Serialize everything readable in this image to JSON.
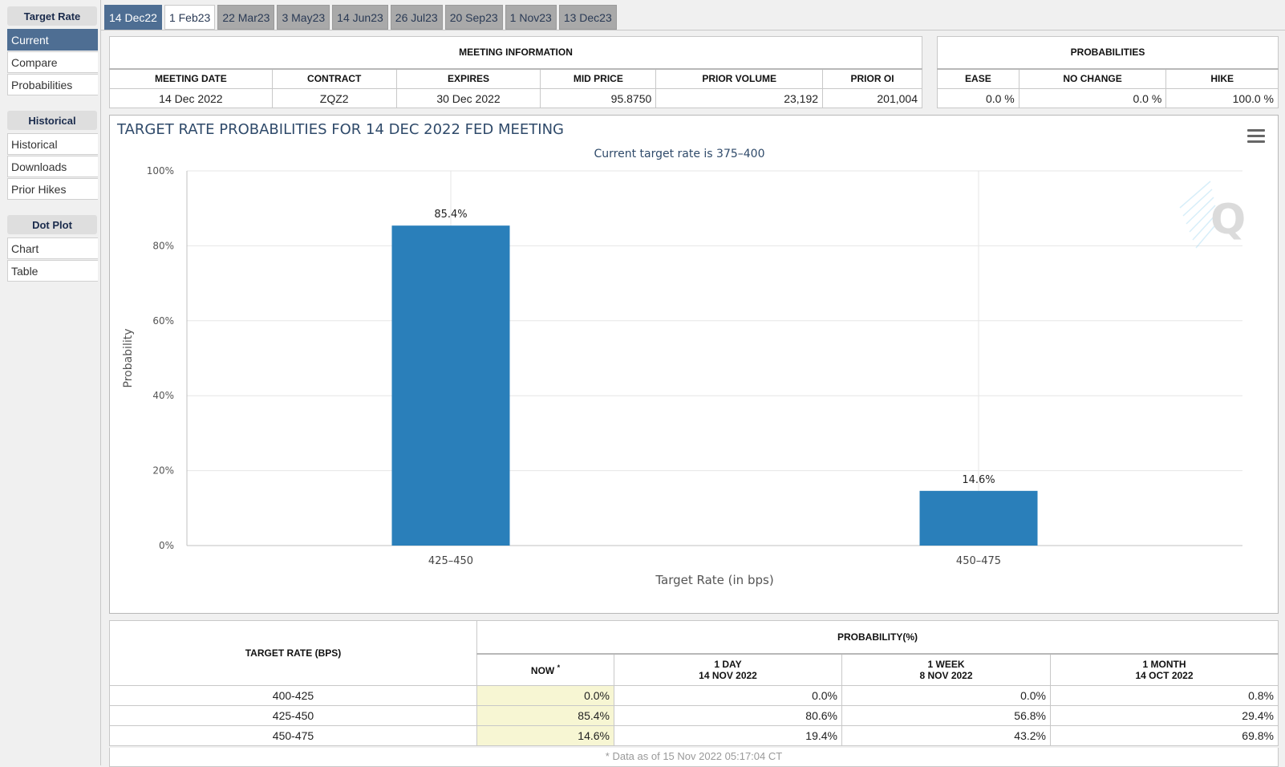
{
  "sidebar": {
    "sections": [
      {
        "title": "Target Rate",
        "items": [
          "Current",
          "Compare",
          "Probabilities"
        ]
      },
      {
        "title": "Historical",
        "items": [
          "Historical",
          "Downloads",
          "Prior Hikes"
        ]
      },
      {
        "title": "Dot Plot",
        "items": [
          "Chart",
          "Table"
        ]
      }
    ]
  },
  "tabs": [
    "14 Dec22",
    "1 Feb23",
    "22 Mar23",
    "3 May23",
    "14 Jun23",
    "26 Jul23",
    "20 Sep23",
    "1 Nov23",
    "13 Dec23"
  ],
  "meeting_info": {
    "title": "MEETING INFORMATION",
    "headers": [
      "MEETING DATE",
      "CONTRACT",
      "EXPIRES",
      "MID PRICE",
      "PRIOR VOLUME",
      "PRIOR OI"
    ],
    "values": [
      "14 Dec 2022",
      "ZQZ2",
      "30 Dec 2022",
      "95.8750",
      "23,192",
      "201,004"
    ]
  },
  "probabilities": {
    "title": "PROBABILITIES",
    "headers": [
      "EASE",
      "NO CHANGE",
      "HIKE"
    ],
    "values": [
      "0.0 %",
      "0.0 %",
      "100.0 %"
    ]
  },
  "chart_data": {
    "type": "bar",
    "title": "TARGET RATE PROBABILITIES FOR 14 DEC 2022 FED MEETING",
    "subtitle": "Current target rate is 375–400",
    "xlabel": "Target Rate (in bps)",
    "ylabel": "Probability",
    "categories": [
      "425–450",
      "450–475"
    ],
    "values": [
      85.4,
      14.6
    ],
    "data_labels": [
      "85.4%",
      "14.6%"
    ],
    "ylim": [
      0,
      100
    ],
    "yticks": [
      "0%",
      "20%",
      "40%",
      "60%",
      "80%",
      "100%"
    ],
    "color": "#2a7fba",
    "grid": true,
    "legend": "none"
  },
  "prob_table": {
    "row_header": "TARGET RATE (BPS)",
    "group_header": "PROBABILITY(%)",
    "columns": [
      {
        "line1": "NOW",
        "sup": "*",
        "line2": ""
      },
      {
        "line1": "1 DAY",
        "line2": "14 NOV 2022"
      },
      {
        "line1": "1 WEEK",
        "line2": "8 NOV 2022"
      },
      {
        "line1": "1 MONTH",
        "line2": "14 OCT 2022"
      }
    ],
    "rows": [
      {
        "rate": "400-425",
        "values": [
          "0.0%",
          "0.0%",
          "0.0%",
          "0.8%"
        ]
      },
      {
        "rate": "425-450",
        "values": [
          "85.4%",
          "80.6%",
          "56.8%",
          "29.4%"
        ]
      },
      {
        "rate": "450-475",
        "values": [
          "14.6%",
          "19.4%",
          "43.2%",
          "69.8%"
        ]
      }
    ],
    "footnote": "* Data as of 15 Nov 2022 05:17:04 CT"
  }
}
